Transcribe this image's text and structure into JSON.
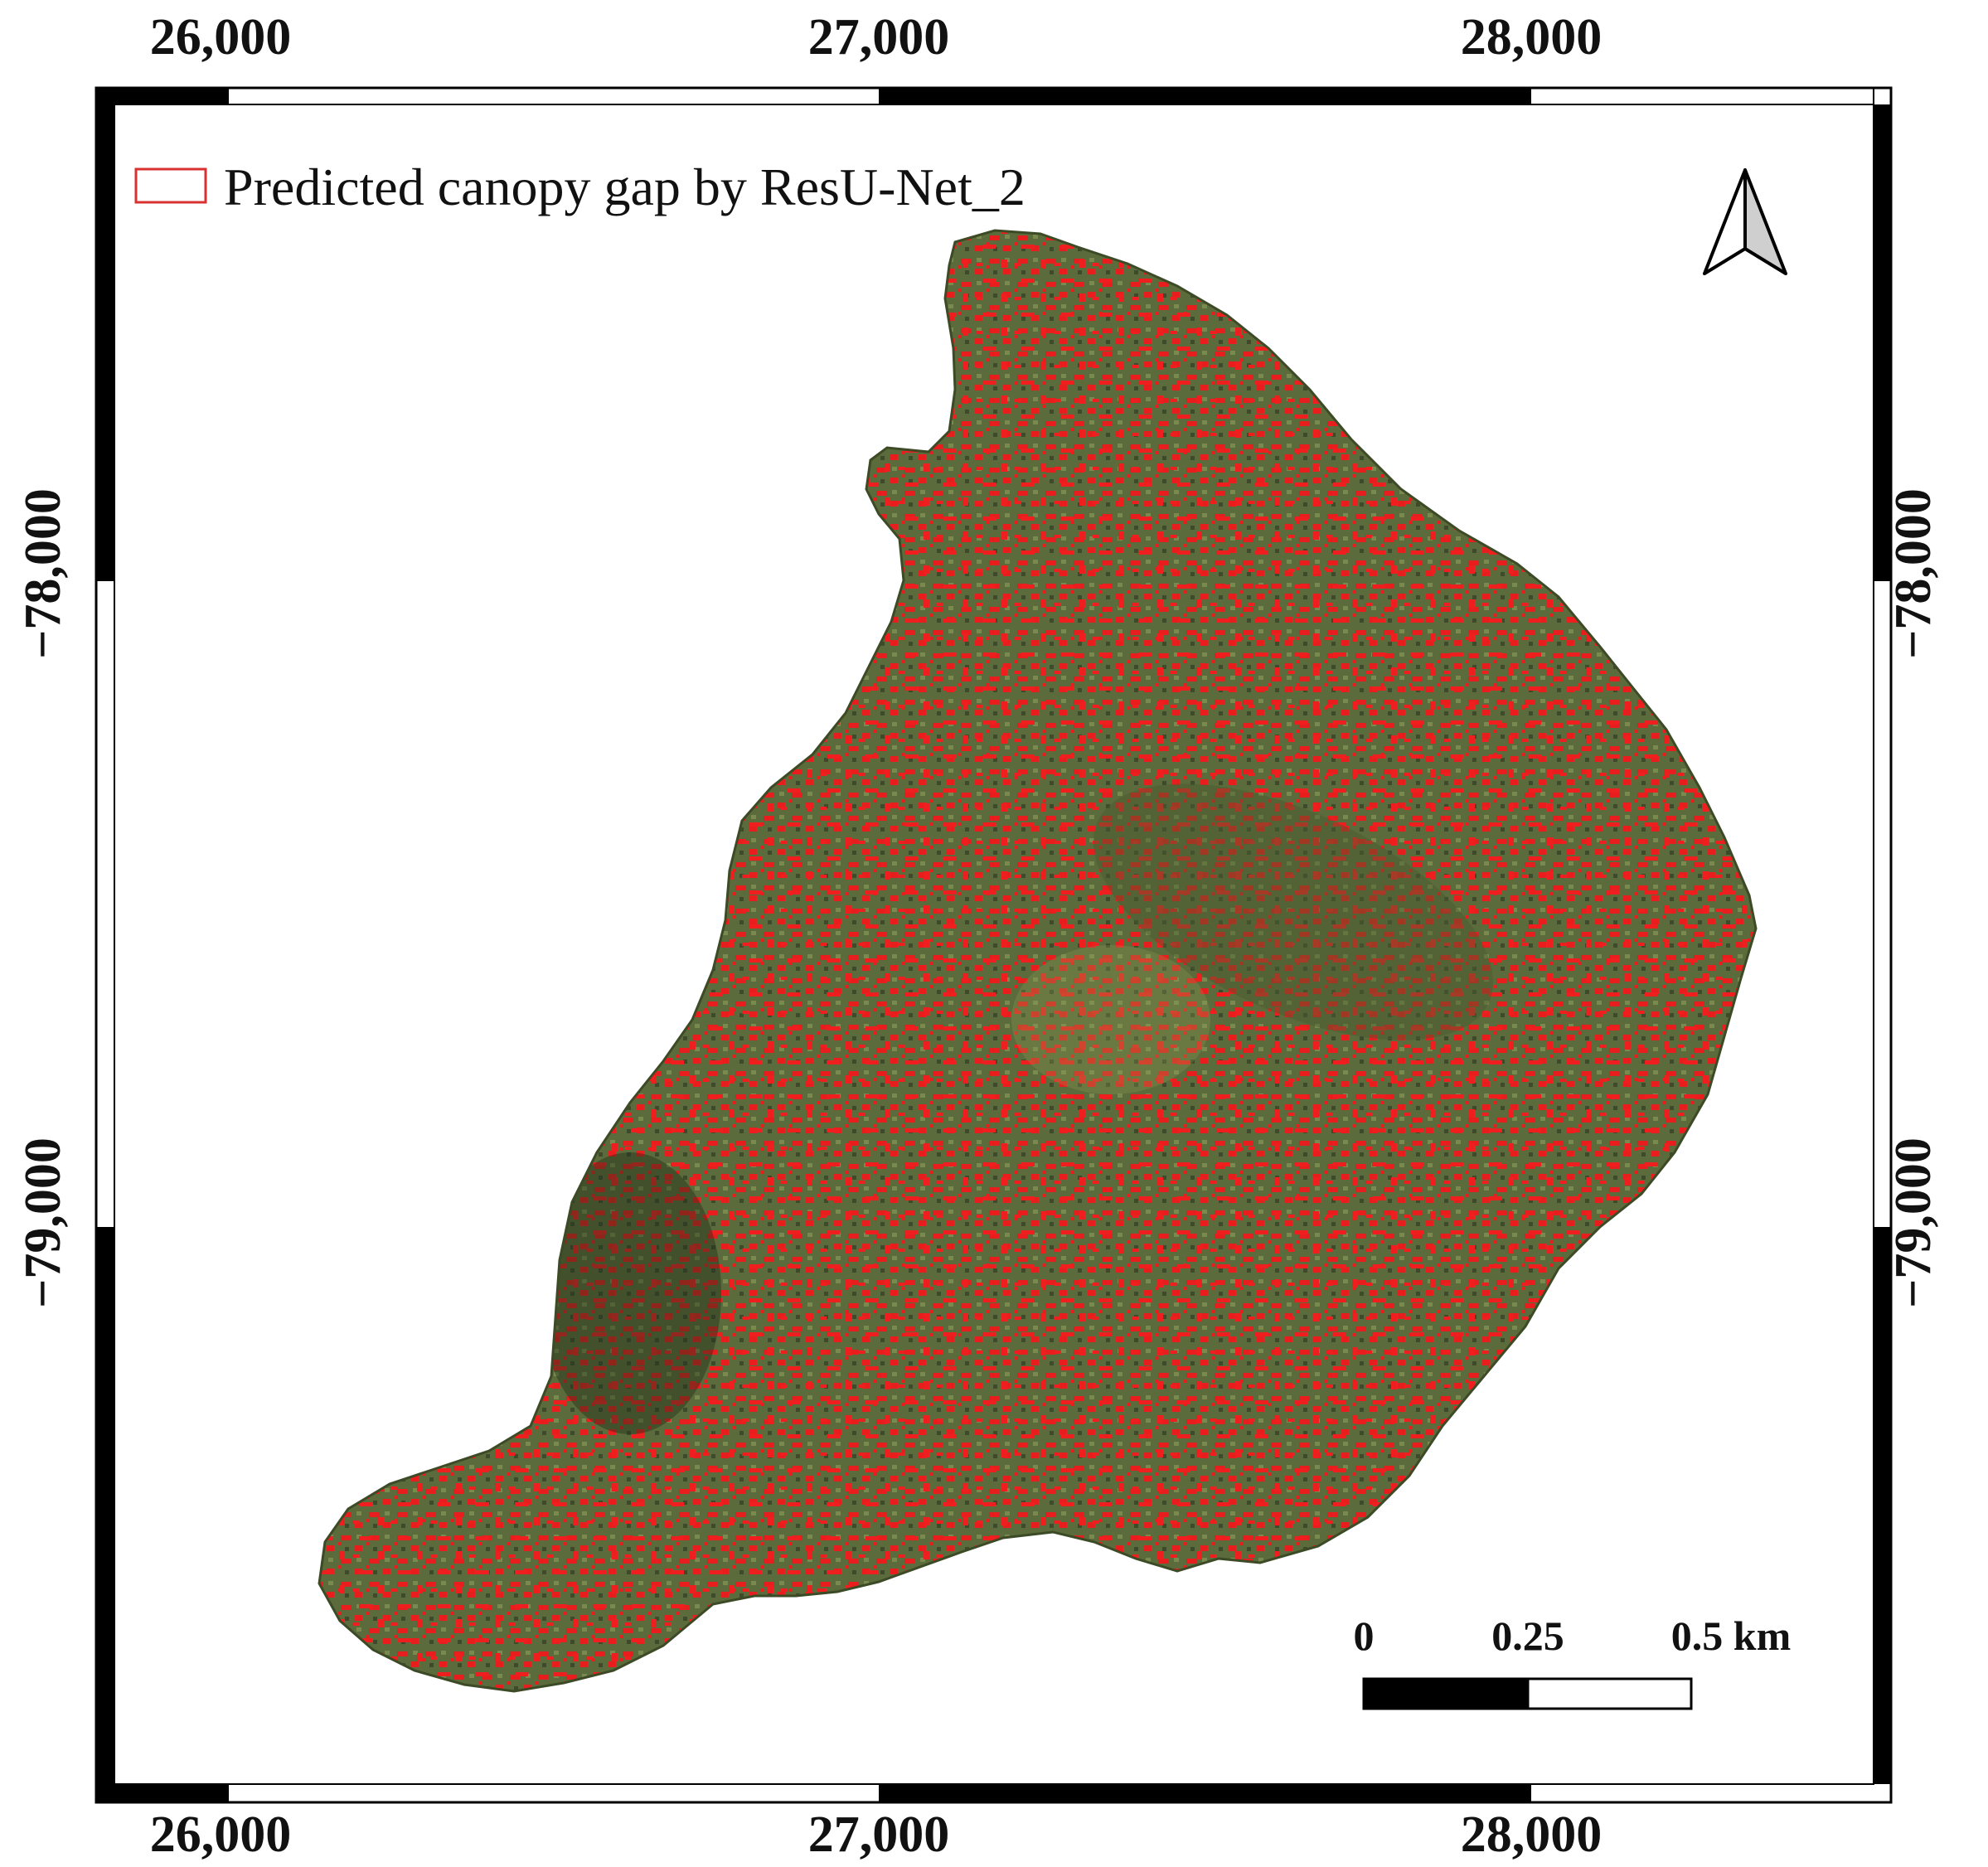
{
  "map": {
    "x_ticks": [
      "26,000",
      "27,000",
      "28,000"
    ],
    "y_ticks": [
      "−78,000",
      "−79,000"
    ],
    "legend": {
      "label": "Predicted canopy gap by ResU-Net_2",
      "swatch_color": "#d93030"
    },
    "north_arrow": "north-arrow-icon",
    "scale_bar": {
      "labels": [
        "0",
        "0.25",
        "0.5 km"
      ]
    },
    "colors": {
      "canopy": "#5a6a3a",
      "gap": "#ee1c1c",
      "frame": "#000000"
    }
  }
}
